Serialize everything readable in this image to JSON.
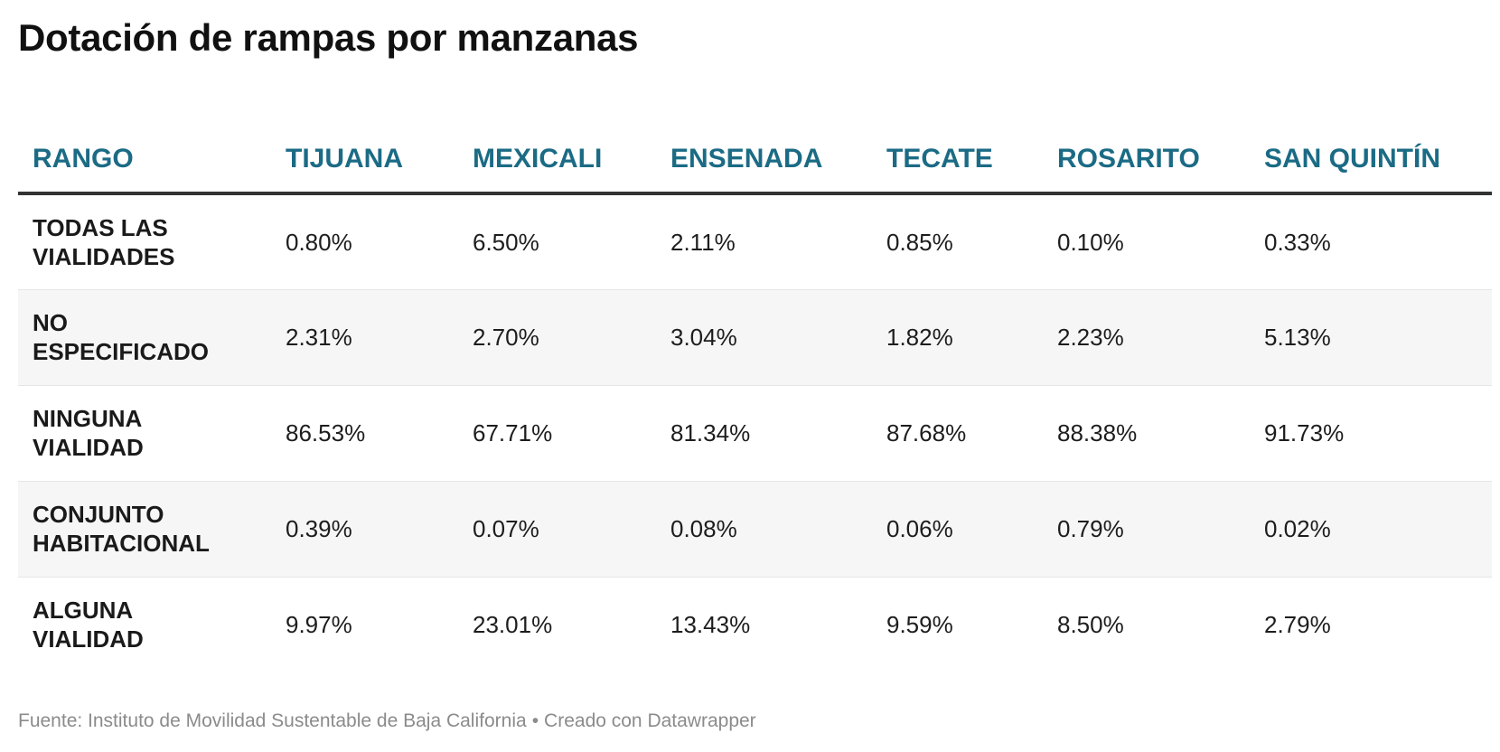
{
  "title": "Dotación de rampas por manzanas",
  "chart_data": {
    "type": "table",
    "title": "Dotación de rampas por manzanas",
    "columns": [
      "RANGO",
      "TIJUANA",
      "MEXICALI",
      "ENSENADA",
      "TECATE",
      "ROSARITO",
      "SAN QUINTÍN"
    ],
    "rows": [
      {
        "label": "TODAS LAS VIALIDADES",
        "values": [
          "0.80%",
          "6.50%",
          "2.11%",
          "0.85%",
          "0.10%",
          "0.33%"
        ]
      },
      {
        "label": "NO ESPECIFICADO",
        "values": [
          "2.31%",
          "2.70%",
          "3.04%",
          "1.82%",
          "2.23%",
          "5.13%"
        ]
      },
      {
        "label": "NINGUNA VIALIDAD",
        "values": [
          "86.53%",
          "67.71%",
          "81.34%",
          "87.68%",
          "88.38%",
          "91.73%"
        ]
      },
      {
        "label": "CONJUNTO HABITACIONAL",
        "values": [
          "0.39%",
          "0.07%",
          "0.08%",
          "0.06%",
          "0.79%",
          "0.02%"
        ]
      },
      {
        "label": "ALGUNA VIALIDAD",
        "values": [
          "9.97%",
          "23.01%",
          "13.43%",
          "9.59%",
          "8.50%",
          "2.79%"
        ]
      }
    ]
  },
  "footer": {
    "source": "Fuente: Instituto de Movilidad Sustentable de Baja California",
    "separator": "•",
    "credit": "Creado con Datawrapper"
  },
  "colors": {
    "header_text": "#1b6b85",
    "header_rule": "#333333",
    "stripe": "#f6f6f6",
    "footer_text": "#8b8b8b"
  }
}
